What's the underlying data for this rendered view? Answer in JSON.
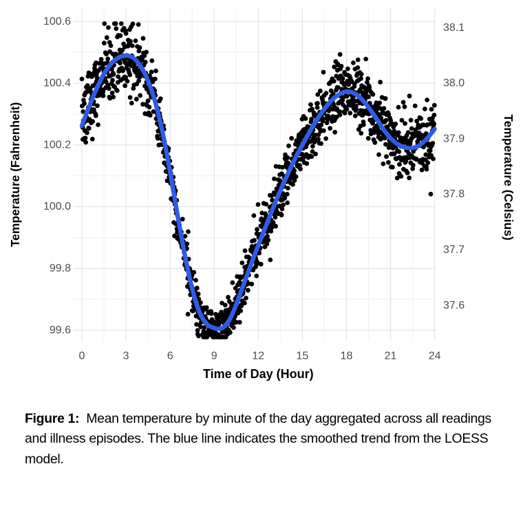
{
  "page": {
    "background": "#ffffff"
  },
  "chart_data": {
    "type": "scatter",
    "title": "",
    "xlabel": "Time of Day (Hour)",
    "ylabel_left": "Temperature (Fahrenheit)",
    "ylabel_right": "Temperature (Celsius)",
    "x_ticks": [
      0,
      3,
      6,
      9,
      12,
      15,
      18,
      21,
      24
    ],
    "y_ticks_fahrenheit": [
      "99.6",
      "99.8",
      "100.0",
      "100.2",
      "100.4",
      "100.6"
    ],
    "y_ticks_celsius": [
      "37.6",
      "37.7",
      "37.8",
      "37.9",
      "38.0",
      "38.1"
    ],
    "xlim": [
      0,
      24
    ],
    "ylim_fahrenheit": [
      99.55,
      100.65
    ],
    "grid": {
      "show": true,
      "minor_x_every_hours": 1.5,
      "major_x_every_hours": 3,
      "minor_y_every_f": 0.1,
      "major_y_every_f": 0.2
    },
    "legend": "none",
    "colors": {
      "points": "#000000",
      "loess_line": "#2F5CE7",
      "grid_major": "#e6e6e6",
      "grid_minor": "#f1f1f1",
      "tick_text": "#4d4d4d",
      "axis_title": "#000000"
    },
    "scatter": {
      "name": "minute-mean temperature readings",
      "n_points": 1440,
      "point_radius_px": 3.4,
      "seed": 7,
      "noise_sd_f_profile": [
        [
          0,
          0.055
        ],
        [
          1.5,
          0.065
        ],
        [
          3,
          0.068
        ],
        [
          4,
          0.06
        ],
        [
          5,
          0.045
        ],
        [
          6,
          0.04
        ],
        [
          7.5,
          0.038
        ],
        [
          9,
          0.036
        ],
        [
          10,
          0.04
        ],
        [
          12,
          0.042
        ],
        [
          14,
          0.045
        ],
        [
          16,
          0.05
        ],
        [
          18,
          0.052
        ],
        [
          20,
          0.05
        ],
        [
          22,
          0.05
        ],
        [
          24,
          0.055
        ]
      ]
    },
    "loess": {
      "name": "LOESS smoothed trend",
      "points_hour_f": [
        [
          0,
          100.262
        ],
        [
          0.5,
          100.325
        ],
        [
          1,
          100.383
        ],
        [
          1.5,
          100.43
        ],
        [
          2,
          100.464
        ],
        [
          2.5,
          100.483
        ],
        [
          3,
          100.49
        ],
        [
          3.5,
          100.482
        ],
        [
          4,
          100.455
        ],
        [
          4.5,
          100.408
        ],
        [
          5,
          100.338
        ],
        [
          5.5,
          100.238
        ],
        [
          6,
          100.113
        ],
        [
          6.5,
          99.975
        ],
        [
          7,
          99.845
        ],
        [
          7.5,
          99.735
        ],
        [
          8,
          99.658
        ],
        [
          8.5,
          99.62
        ],
        [
          9,
          99.607
        ],
        [
          9.5,
          99.606
        ],
        [
          10,
          99.63
        ],
        [
          10.5,
          99.683
        ],
        [
          11,
          99.748
        ],
        [
          11.5,
          99.812
        ],
        [
          12,
          99.875
        ],
        [
          12.5,
          99.935
        ],
        [
          13,
          99.995
        ],
        [
          13.5,
          100.052
        ],
        [
          14,
          100.105
        ],
        [
          14.5,
          100.155
        ],
        [
          15,
          100.2
        ],
        [
          15.5,
          100.243
        ],
        [
          16,
          100.283
        ],
        [
          16.5,
          100.317
        ],
        [
          17,
          100.345
        ],
        [
          17.5,
          100.364
        ],
        [
          18,
          100.373
        ],
        [
          18.5,
          100.368
        ],
        [
          19,
          100.35
        ],
        [
          19.5,
          100.322
        ],
        [
          20,
          100.288
        ],
        [
          20.5,
          100.252
        ],
        [
          21,
          100.222
        ],
        [
          21.5,
          100.202
        ],
        [
          22,
          100.192
        ],
        [
          22.5,
          100.19
        ],
        [
          23,
          100.2
        ],
        [
          23.5,
          100.222
        ],
        [
          24,
          100.252
        ]
      ]
    },
    "celsius_conversion": "F = C * 9/5 + 32"
  },
  "caption": {
    "label": "Figure 1:",
    "text": "Mean temperature by minute of the day aggregated across all readings and illness episodes. The blue line indicates the smoothed trend from the LOESS model."
  }
}
